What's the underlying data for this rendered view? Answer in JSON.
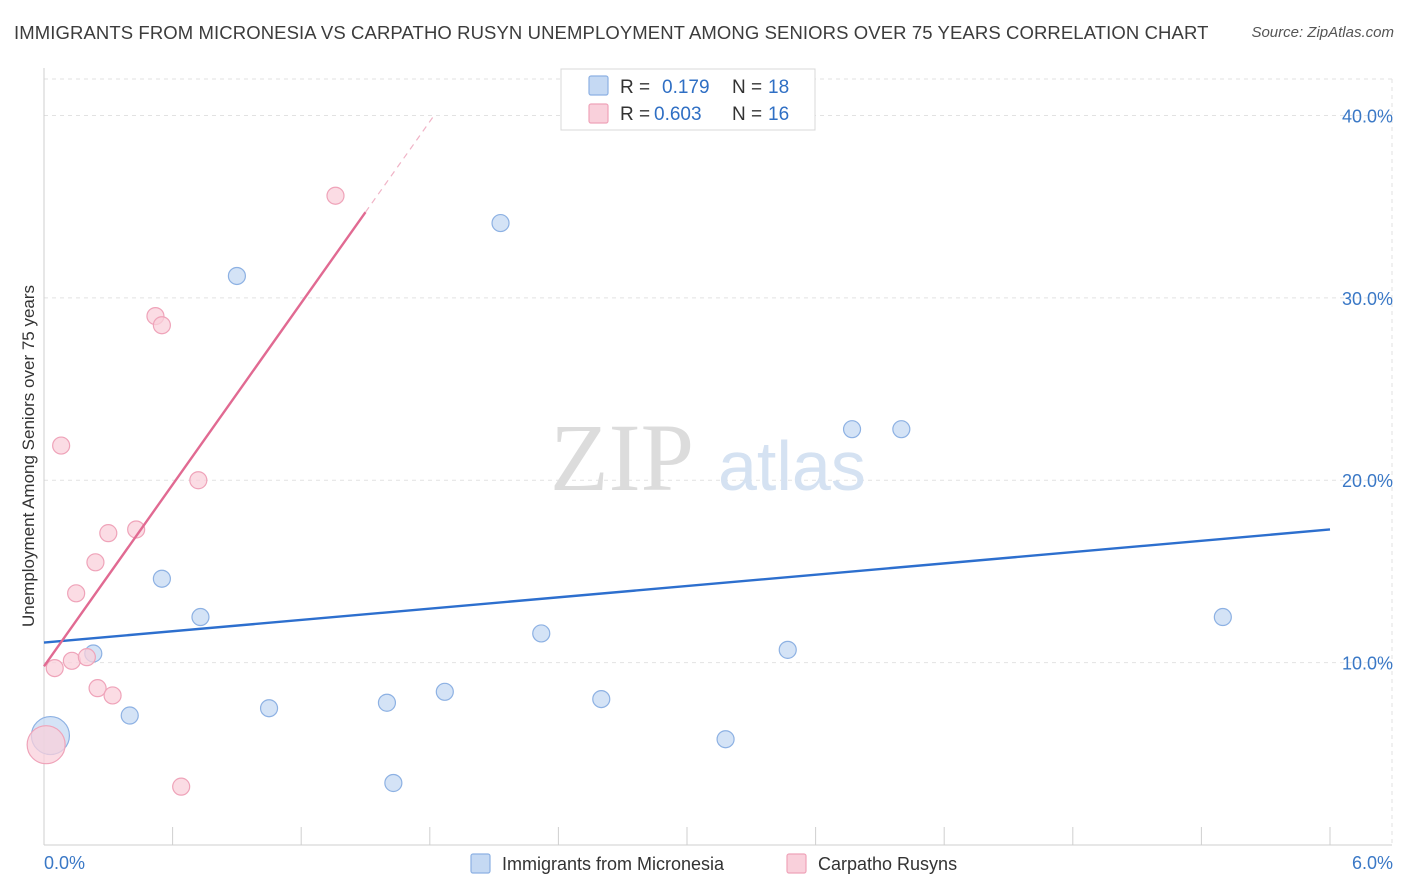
{
  "title": "IMMIGRANTS FROM MICRONESIA VS CARPATHO RUSYN UNEMPLOYMENT AMONG SENIORS OVER 75 YEARS CORRELATION CHART",
  "source": "Source: ZipAtlas.com",
  "watermark": {
    "part1": "ZIP",
    "part2": "atlas"
  },
  "colors": {
    "blue_fill": "#c5d9f3",
    "blue_stroke": "#8db1e3",
    "blue_line": "#2d6fce",
    "pink_fill": "#f9d0db",
    "pink_stroke": "#efa3b9",
    "pink_line": "#e16a92",
    "grid": "#e2e2e2",
    "axis_text": "#3a78c6"
  },
  "chart_data": {
    "type": "scatter",
    "xlabel": "",
    "ylabel": "Unemployment Among Seniors over 75 years",
    "xlim": [
      0,
      6
    ],
    "ylim": [
      0,
      42
    ],
    "x_tick_labels": [
      "0.0%",
      "6.0%"
    ],
    "y_ticks": [
      10,
      20,
      30,
      40
    ],
    "y_tick_labels": [
      "10.0%",
      "20.0%",
      "30.0%",
      "40.0%"
    ],
    "grid": true,
    "legend": {
      "position": "top-center",
      "entries": [
        {
          "r_label": "R =",
          "r_value": "0.179",
          "n_label": "N =",
          "n_value": "18"
        },
        {
          "r_label": "R =",
          "r_value": "0.603",
          "n_label": "N =",
          "n_value": "16"
        }
      ]
    },
    "series": [
      {
        "name": "Immigrants from Micronesia",
        "color": "blue",
        "points": [
          {
            "x": 0.03,
            "y": 6.0,
            "size": "large"
          },
          {
            "x": 0.23,
            "y": 10.5
          },
          {
            "x": 0.4,
            "y": 7.1
          },
          {
            "x": 0.55,
            "y": 14.6
          },
          {
            "x": 0.73,
            "y": 12.5
          },
          {
            "x": 0.9,
            "y": 31.2
          },
          {
            "x": 1.05,
            "y": 7.5
          },
          {
            "x": 1.6,
            "y": 7.8
          },
          {
            "x": 1.63,
            "y": 3.4
          },
          {
            "x": 1.87,
            "y": 8.4
          },
          {
            "x": 2.13,
            "y": 34.1
          },
          {
            "x": 2.32,
            "y": 11.6
          },
          {
            "x": 2.6,
            "y": 8.0
          },
          {
            "x": 3.18,
            "y": 5.8
          },
          {
            "x": 3.47,
            "y": 10.7
          },
          {
            "x": 3.77,
            "y": 22.8
          },
          {
            "x": 4.0,
            "y": 22.8
          },
          {
            "x": 5.5,
            "y": 12.5
          }
        ],
        "trend": {
          "x1": 0.0,
          "y1": 11.1,
          "x2": 6.0,
          "y2": 17.3
        }
      },
      {
        "name": "Carpatho Rusyns",
        "color": "pink",
        "points": [
          {
            "x": 0.01,
            "y": 5.5,
            "size": "large"
          },
          {
            "x": 0.05,
            "y": 9.7
          },
          {
            "x": 0.08,
            "y": 21.9
          },
          {
            "x": 0.13,
            "y": 10.1
          },
          {
            "x": 0.15,
            "y": 13.8
          },
          {
            "x": 0.2,
            "y": 10.3
          },
          {
            "x": 0.24,
            "y": 15.5
          },
          {
            "x": 0.25,
            "y": 8.6
          },
          {
            "x": 0.3,
            "y": 17.1
          },
          {
            "x": 0.32,
            "y": 8.2
          },
          {
            "x": 0.43,
            "y": 17.3
          },
          {
            "x": 0.52,
            "y": 29.0
          },
          {
            "x": 0.55,
            "y": 28.5
          },
          {
            "x": 0.64,
            "y": 3.2
          },
          {
            "x": 0.72,
            "y": 20.0
          },
          {
            "x": 1.36,
            "y": 35.6
          }
        ],
        "trend": {
          "x1": 0.0,
          "y1": 9.8,
          "x2": 1.5,
          "y2": 34.7
        },
        "trend_extension": {
          "x1": 1.5,
          "y1": 34.7,
          "x2": 1.82,
          "y2": 40.0
        }
      }
    ]
  }
}
